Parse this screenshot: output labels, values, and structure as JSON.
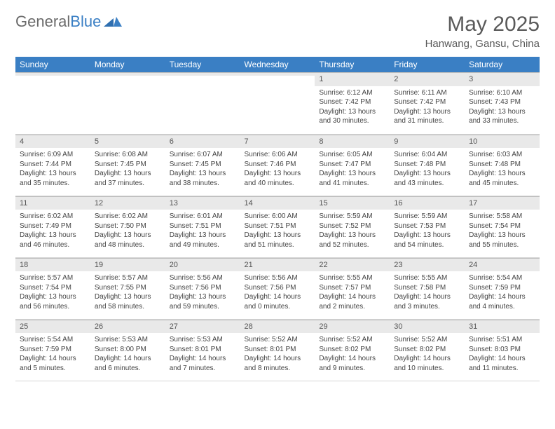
{
  "brand": {
    "part1": "General",
    "part2": "Blue"
  },
  "title": "May 2025",
  "location": "Hanwang, Gansu, China",
  "colors": {
    "header_bg": "#3a7fc4",
    "header_fg": "#ffffff",
    "daynum_bg": "#e9e9e9",
    "text": "#444444",
    "title_color": "#5a5a5a",
    "border": "#d6d6d6"
  },
  "day_headers": [
    "Sunday",
    "Monday",
    "Tuesday",
    "Wednesday",
    "Thursday",
    "Friday",
    "Saturday"
  ],
  "weeks": [
    [
      {
        "n": "",
        "sr": "",
        "ss": "",
        "dl": ""
      },
      {
        "n": "",
        "sr": "",
        "ss": "",
        "dl": ""
      },
      {
        "n": "",
        "sr": "",
        "ss": "",
        "dl": ""
      },
      {
        "n": "",
        "sr": "",
        "ss": "",
        "dl": ""
      },
      {
        "n": "1",
        "sr": "Sunrise: 6:12 AM",
        "ss": "Sunset: 7:42 PM",
        "dl": "Daylight: 13 hours and 30 minutes."
      },
      {
        "n": "2",
        "sr": "Sunrise: 6:11 AM",
        "ss": "Sunset: 7:42 PM",
        "dl": "Daylight: 13 hours and 31 minutes."
      },
      {
        "n": "3",
        "sr": "Sunrise: 6:10 AM",
        "ss": "Sunset: 7:43 PM",
        "dl": "Daylight: 13 hours and 33 minutes."
      }
    ],
    [
      {
        "n": "4",
        "sr": "Sunrise: 6:09 AM",
        "ss": "Sunset: 7:44 PM",
        "dl": "Daylight: 13 hours and 35 minutes."
      },
      {
        "n": "5",
        "sr": "Sunrise: 6:08 AM",
        "ss": "Sunset: 7:45 PM",
        "dl": "Daylight: 13 hours and 37 minutes."
      },
      {
        "n": "6",
        "sr": "Sunrise: 6:07 AM",
        "ss": "Sunset: 7:45 PM",
        "dl": "Daylight: 13 hours and 38 minutes."
      },
      {
        "n": "7",
        "sr": "Sunrise: 6:06 AM",
        "ss": "Sunset: 7:46 PM",
        "dl": "Daylight: 13 hours and 40 minutes."
      },
      {
        "n": "8",
        "sr": "Sunrise: 6:05 AM",
        "ss": "Sunset: 7:47 PM",
        "dl": "Daylight: 13 hours and 41 minutes."
      },
      {
        "n": "9",
        "sr": "Sunrise: 6:04 AM",
        "ss": "Sunset: 7:48 PM",
        "dl": "Daylight: 13 hours and 43 minutes."
      },
      {
        "n": "10",
        "sr": "Sunrise: 6:03 AM",
        "ss": "Sunset: 7:48 PM",
        "dl": "Daylight: 13 hours and 45 minutes."
      }
    ],
    [
      {
        "n": "11",
        "sr": "Sunrise: 6:02 AM",
        "ss": "Sunset: 7:49 PM",
        "dl": "Daylight: 13 hours and 46 minutes."
      },
      {
        "n": "12",
        "sr": "Sunrise: 6:02 AM",
        "ss": "Sunset: 7:50 PM",
        "dl": "Daylight: 13 hours and 48 minutes."
      },
      {
        "n": "13",
        "sr": "Sunrise: 6:01 AM",
        "ss": "Sunset: 7:51 PM",
        "dl": "Daylight: 13 hours and 49 minutes."
      },
      {
        "n": "14",
        "sr": "Sunrise: 6:00 AM",
        "ss": "Sunset: 7:51 PM",
        "dl": "Daylight: 13 hours and 51 minutes."
      },
      {
        "n": "15",
        "sr": "Sunrise: 5:59 AM",
        "ss": "Sunset: 7:52 PM",
        "dl": "Daylight: 13 hours and 52 minutes."
      },
      {
        "n": "16",
        "sr": "Sunrise: 5:59 AM",
        "ss": "Sunset: 7:53 PM",
        "dl": "Daylight: 13 hours and 54 minutes."
      },
      {
        "n": "17",
        "sr": "Sunrise: 5:58 AM",
        "ss": "Sunset: 7:54 PM",
        "dl": "Daylight: 13 hours and 55 minutes."
      }
    ],
    [
      {
        "n": "18",
        "sr": "Sunrise: 5:57 AM",
        "ss": "Sunset: 7:54 PM",
        "dl": "Daylight: 13 hours and 56 minutes."
      },
      {
        "n": "19",
        "sr": "Sunrise: 5:57 AM",
        "ss": "Sunset: 7:55 PM",
        "dl": "Daylight: 13 hours and 58 minutes."
      },
      {
        "n": "20",
        "sr": "Sunrise: 5:56 AM",
        "ss": "Sunset: 7:56 PM",
        "dl": "Daylight: 13 hours and 59 minutes."
      },
      {
        "n": "21",
        "sr": "Sunrise: 5:56 AM",
        "ss": "Sunset: 7:56 PM",
        "dl": "Daylight: 14 hours and 0 minutes."
      },
      {
        "n": "22",
        "sr": "Sunrise: 5:55 AM",
        "ss": "Sunset: 7:57 PM",
        "dl": "Daylight: 14 hours and 2 minutes."
      },
      {
        "n": "23",
        "sr": "Sunrise: 5:55 AM",
        "ss": "Sunset: 7:58 PM",
        "dl": "Daylight: 14 hours and 3 minutes."
      },
      {
        "n": "24",
        "sr": "Sunrise: 5:54 AM",
        "ss": "Sunset: 7:59 PM",
        "dl": "Daylight: 14 hours and 4 minutes."
      }
    ],
    [
      {
        "n": "25",
        "sr": "Sunrise: 5:54 AM",
        "ss": "Sunset: 7:59 PM",
        "dl": "Daylight: 14 hours and 5 minutes."
      },
      {
        "n": "26",
        "sr": "Sunrise: 5:53 AM",
        "ss": "Sunset: 8:00 PM",
        "dl": "Daylight: 14 hours and 6 minutes."
      },
      {
        "n": "27",
        "sr": "Sunrise: 5:53 AM",
        "ss": "Sunset: 8:01 PM",
        "dl": "Daylight: 14 hours and 7 minutes."
      },
      {
        "n": "28",
        "sr": "Sunrise: 5:52 AM",
        "ss": "Sunset: 8:01 PM",
        "dl": "Daylight: 14 hours and 8 minutes."
      },
      {
        "n": "29",
        "sr": "Sunrise: 5:52 AM",
        "ss": "Sunset: 8:02 PM",
        "dl": "Daylight: 14 hours and 9 minutes."
      },
      {
        "n": "30",
        "sr": "Sunrise: 5:52 AM",
        "ss": "Sunset: 8:02 PM",
        "dl": "Daylight: 14 hours and 10 minutes."
      },
      {
        "n": "31",
        "sr": "Sunrise: 5:51 AM",
        "ss": "Sunset: 8:03 PM",
        "dl": "Daylight: 14 hours and 11 minutes."
      }
    ]
  ]
}
